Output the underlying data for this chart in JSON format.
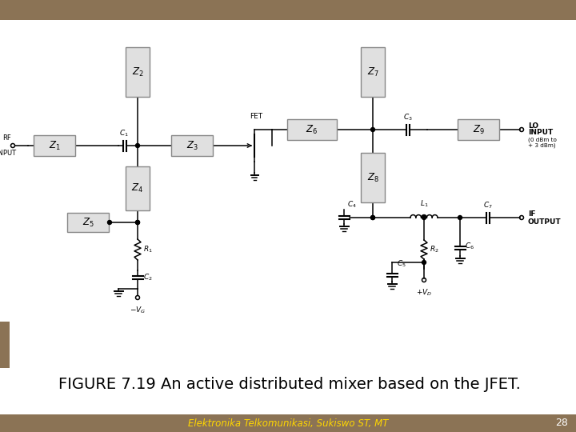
{
  "title": "FIGURE 7.19 An active distributed mixer based on the JFET.",
  "subtitle": "Elektronika Telkomunikasi, Sukiswo ST, MT",
  "page_number": "28",
  "bg_color": "#8B7355",
  "circuit_bg": "#FFFFFF",
  "box_fill": "#E0E0E0",
  "box_edge": "#888888",
  "line_color": "#000000",
  "title_color": "#000000",
  "subtitle_color": "#FFD700",
  "page_num_color": "#FFFFFF",
  "title_fontsize": 14,
  "subtitle_fontsize": 8.5
}
